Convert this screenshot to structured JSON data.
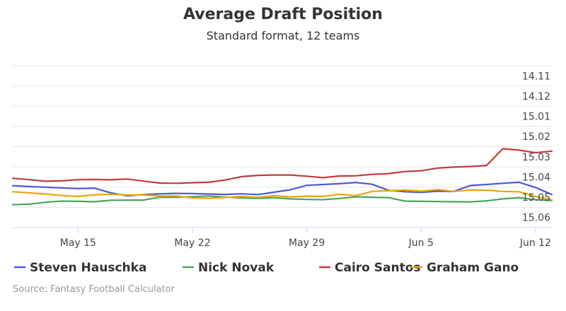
{
  "chart_data": {
    "type": "line",
    "title": "Average Draft Position",
    "subtitle": "Standard format, 12 teams",
    "x": [
      "May 11",
      "May 12",
      "May 13",
      "May 14",
      "May 15",
      "May 16",
      "May 17",
      "May 18",
      "May 19",
      "May 20",
      "May 21",
      "May 22",
      "May 23",
      "May 24",
      "May 25",
      "May 26",
      "May 27",
      "May 28",
      "May 29",
      "May 30",
      "May 31",
      "Jun 1",
      "Jun 2",
      "Jun 3",
      "Jun 4",
      "Jun 5",
      "Jun 6",
      "Jun 7",
      "Jun 8",
      "Jun 9",
      "Jun 10",
      "Jun 11",
      "Jun 12",
      "Jun 13"
    ],
    "x_tick_labels": [
      "May 15",
      "May 22",
      "May 29",
      "Jun 5",
      "Jun 12"
    ],
    "y_tick_labels": [
      "14.11",
      "14.12",
      "15.01",
      "15.02",
      "15.03",
      "15.04",
      "15.05",
      "15.06"
    ],
    "y_axis_reversed": true,
    "grid": true,
    "legend_position": "bottom",
    "series": [
      {
        "name": "Steven Hauschka",
        "color": "#4f57d8",
        "values": [
          5.43,
          5.47,
          5.5,
          5.54,
          5.57,
          5.55,
          5.78,
          5.93,
          5.87,
          5.83,
          5.81,
          5.82,
          5.84,
          5.86,
          5.83,
          5.87,
          5.75,
          5.63,
          5.41,
          5.37,
          5.33,
          5.27,
          5.36,
          5.66,
          5.73,
          5.76,
          5.7,
          5.71,
          5.42,
          5.37,
          5.31,
          5.26,
          5.52,
          5.87
        ]
      },
      {
        "name": "Nick Novak",
        "color": "#4aa55a",
        "values": [
          6.37,
          6.34,
          6.25,
          6.19,
          6.2,
          6.22,
          6.15,
          6.14,
          6.14,
          6.0,
          6.0,
          5.97,
          5.94,
          5.99,
          6.03,
          6.06,
          6.02,
          6.08,
          6.11,
          6.12,
          6.06,
          5.98,
          6.0,
          6.02,
          6.19,
          6.2,
          6.21,
          6.22,
          6.23,
          6.18,
          6.08,
          6.02,
          6.12,
          6.17
        ]
      },
      {
        "name": "Cairo Santos",
        "color": "#c23b3b",
        "values": [
          5.06,
          5.13,
          5.21,
          5.19,
          5.13,
          5.12,
          5.14,
          5.1,
          5.2,
          5.3,
          5.31,
          5.28,
          5.26,
          5.15,
          4.98,
          4.92,
          4.9,
          4.9,
          4.96,
          5.03,
          4.95,
          4.94,
          4.87,
          4.83,
          4.73,
          4.69,
          4.56,
          4.51,
          4.48,
          4.43,
          3.6,
          3.67,
          3.8,
          3.72
        ]
      },
      {
        "name": "Graham Gano",
        "color": "#f0a30a",
        "values": [
          5.73,
          5.78,
          5.84,
          5.91,
          5.96,
          5.88,
          5.85,
          5.89,
          5.89,
          5.93,
          5.94,
          6.03,
          6.05,
          6.01,
          5.96,
          6.01,
          5.92,
          5.98,
          5.95,
          5.96,
          5.85,
          5.92,
          5.71,
          5.68,
          5.64,
          5.7,
          5.62,
          5.71,
          5.64,
          5.65,
          5.71,
          5.73,
          5.96,
          6.13
        ]
      }
    ]
  },
  "credits": "Source: Fantasy Football Calculator"
}
